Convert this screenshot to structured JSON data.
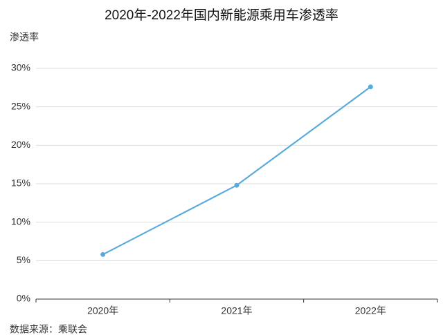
{
  "chart_data": {
    "type": "line",
    "title": "2020年-2022年国内新能源乘用车渗透率",
    "y_label": "渗透率",
    "source": "数据来源：乘联会",
    "categories": [
      "2020年",
      "2021年",
      "2022年"
    ],
    "series": [
      {
        "name": "渗透率",
        "color": "#5aabdc",
        "values": [
          5.8,
          14.8,
          27.6
        ]
      }
    ],
    "ylim": [
      0,
      30
    ],
    "yticks": [
      {
        "value": 0,
        "label": "0%"
      },
      {
        "value": 5,
        "label": "5%"
      },
      {
        "value": 10,
        "label": "10%"
      },
      {
        "value": 15,
        "label": "15%"
      },
      {
        "value": 20,
        "label": "20%"
      },
      {
        "value": 25,
        "label": "25%"
      },
      {
        "value": 30,
        "label": "30%"
      }
    ],
    "grid": true
  }
}
